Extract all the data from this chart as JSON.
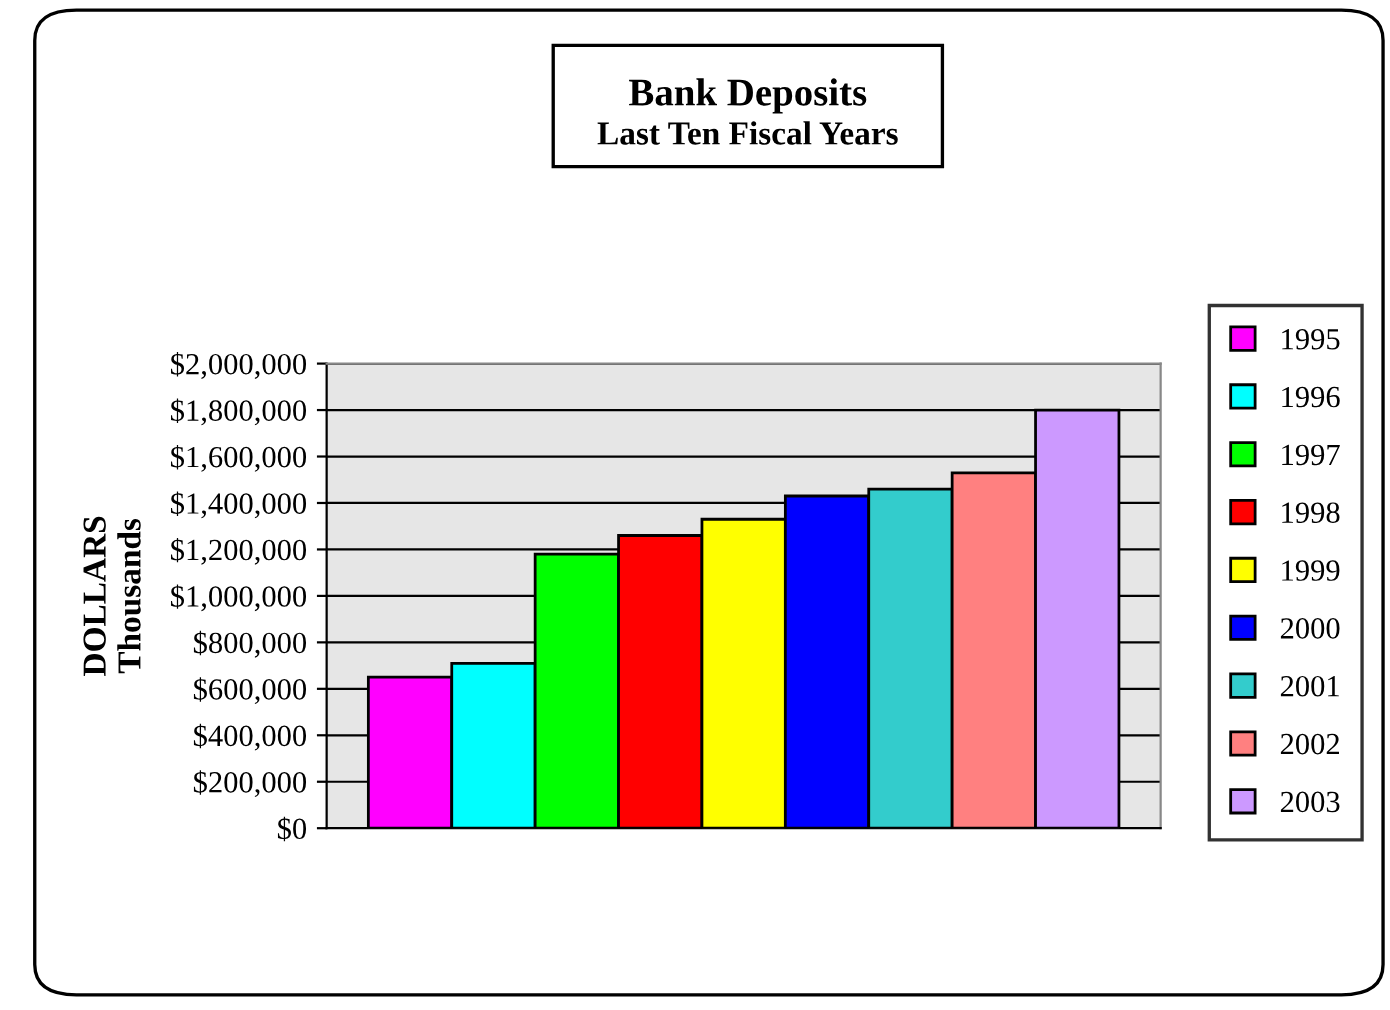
{
  "chart_data": {
    "type": "bar",
    "title": "Bank Deposits",
    "subtitle": "Last Ten Fiscal Years",
    "ylabel": "DOLLARS\nThousands",
    "categories": [
      null
    ],
    "series": [
      {
        "name": "1995",
        "color": "#ff00ff",
        "values": [
          650000
        ]
      },
      {
        "name": "1996",
        "color": "#00ffff",
        "values": [
          710000
        ]
      },
      {
        "name": "1997",
        "color": "#00ff00",
        "values": [
          1180000
        ]
      },
      {
        "name": "1998",
        "color": "#ff0000",
        "values": [
          1260000
        ]
      },
      {
        "name": "1999",
        "color": "#ffff00",
        "values": [
          1330000
        ]
      },
      {
        "name": "2000",
        "color": "#0000ff",
        "values": [
          1430000
        ]
      },
      {
        "name": "2001",
        "color": "#33cccc",
        "values": [
          1460000
        ]
      },
      {
        "name": "2002",
        "color": "#ff8080",
        "values": [
          1530000
        ]
      },
      {
        "name": "2003",
        "color": "#cc99ff",
        "values": [
          1800000
        ]
      }
    ],
    "ylim": [
      0,
      2000000
    ],
    "yticks": [
      {
        "value": 0,
        "label": "$0"
      },
      {
        "value": 200000,
        "label": "$200,000"
      },
      {
        "value": 400000,
        "label": "$400,000"
      },
      {
        "value": 600000,
        "label": "$600,000"
      },
      {
        "value": 800000,
        "label": "$800,000"
      },
      {
        "value": 1000000,
        "label": "$1,000,000"
      },
      {
        "value": 1200000,
        "label": "$1,200,000"
      },
      {
        "value": 1400000,
        "label": "$1,400,000"
      },
      {
        "value": 1600000,
        "label": "$1,600,000"
      },
      {
        "value": 1800000,
        "label": "$1,800,000"
      },
      {
        "value": 2000000,
        "label": "$2,000,000"
      }
    ],
    "grid": "y",
    "legend": "right"
  }
}
